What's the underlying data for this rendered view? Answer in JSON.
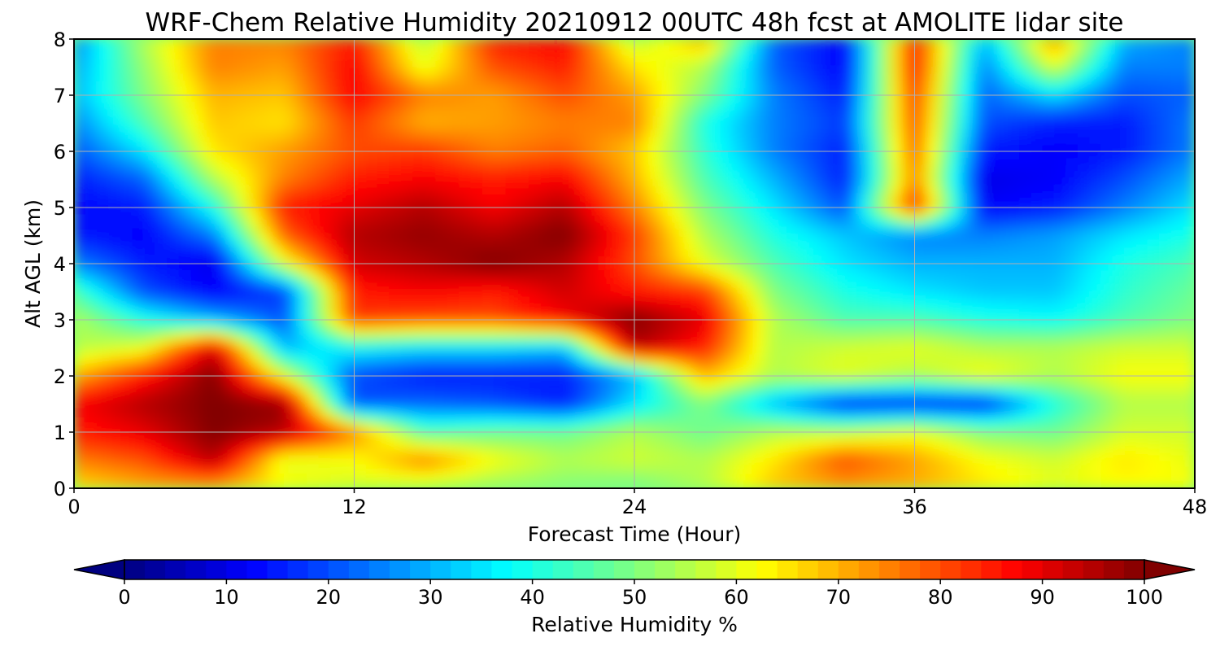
{
  "chart_data": {
    "type": "heatmap",
    "title": "WRF-Chem Relative Humidity 20210912 00UTC 48h fcst at AMOLITE lidar site",
    "xlabel": "Forecast Time (Hour)",
    "ylabel": "Alt AGL (km)",
    "xlim": [
      0,
      48
    ],
    "ylim": [
      0,
      8
    ],
    "x_ticks": [
      "0",
      "12",
      "24",
      "36",
      "48"
    ],
    "y_ticks": [
      "0",
      "1",
      "2",
      "3",
      "4",
      "5",
      "6",
      "7",
      "8"
    ],
    "grid": true,
    "colorbar": {
      "label": "Relative Humidity %",
      "colormap": "jet",
      "range": [
        0,
        100
      ],
      "extend": "both",
      "ticks": [
        "0",
        "10",
        "20",
        "30",
        "40",
        "50",
        "60",
        "70",
        "80",
        "90",
        "100"
      ]
    },
    "x": [
      0,
      3,
      6,
      9,
      12,
      15,
      18,
      21,
      24,
      27,
      30,
      33,
      36,
      39,
      42,
      45,
      48
    ],
    "y": [
      0,
      0.5,
      1,
      1.5,
      2,
      2.5,
      3,
      3.5,
      4,
      4.5,
      5,
      5.5,
      6,
      6.5,
      7,
      7.5,
      8
    ],
    "z": [
      [
        65,
        70,
        70,
        62,
        58,
        55,
        52,
        50,
        48,
        55,
        68,
        72,
        70,
        65,
        60,
        62,
        62
      ],
      [
        75,
        80,
        95,
        60,
        62,
        75,
        62,
        55,
        58,
        55,
        65,
        80,
        72,
        62,
        58,
        65,
        60
      ],
      [
        85,
        90,
        100,
        95,
        75,
        45,
        48,
        48,
        55,
        48,
        55,
        55,
        60,
        50,
        48,
        58,
        58
      ],
      [
        88,
        95,
        100,
        98,
        20,
        22,
        20,
        15,
        35,
        50,
        30,
        15,
        15,
        15,
        40,
        55,
        55
      ],
      [
        70,
        85,
        100,
        60,
        20,
        15,
        15,
        15,
        30,
        70,
        55,
        60,
        55,
        62,
        55,
        62,
        62
      ],
      [
        55,
        60,
        92,
        30,
        38,
        35,
        35,
        32,
        95,
        85,
        55,
        58,
        60,
        55,
        55,
        58,
        58
      ],
      [
        55,
        40,
        30,
        20,
        82,
        80,
        80,
        88,
        100,
        90,
        55,
        45,
        45,
        40,
        38,
        45,
        50
      ],
      [
        45,
        20,
        12,
        18,
        85,
        88,
        85,
        92,
        85,
        82,
        50,
        40,
        35,
        32,
        32,
        42,
        48
      ],
      [
        25,
        15,
        10,
        60,
        92,
        95,
        100,
        95,
        80,
        60,
        45,
        35,
        30,
        30,
        30,
        40,
        45
      ],
      [
        15,
        12,
        25,
        78,
        95,
        98,
        95,
        100,
        82,
        55,
        40,
        32,
        25,
        25,
        28,
        35,
        40
      ],
      [
        12,
        15,
        40,
        85,
        90,
        95,
        88,
        95,
        75,
        50,
        35,
        20,
        85,
        12,
        15,
        25,
        35
      ],
      [
        15,
        22,
        55,
        75,
        85,
        88,
        85,
        88,
        70,
        45,
        30,
        15,
        75,
        10,
        12,
        20,
        30
      ],
      [
        20,
        35,
        65,
        72,
        80,
        82,
        75,
        78,
        68,
        42,
        25,
        15,
        78,
        15,
        12,
        15,
        25
      ],
      [
        25,
        45,
        68,
        65,
        82,
        70,
        72,
        75,
        75,
        40,
        25,
        18,
        80,
        20,
        15,
        15,
        25
      ],
      [
        30,
        50,
        70,
        68,
        88,
        75,
        72,
        80,
        72,
        50,
        25,
        15,
        82,
        22,
        35,
        20,
        22
      ],
      [
        28,
        52,
        75,
        72,
        88,
        60,
        80,
        85,
        65,
        55,
        22,
        12,
        85,
        25,
        60,
        25,
        25
      ],
      [
        25,
        55,
        75,
        75,
        85,
        55,
        85,
        88,
        55,
        72,
        22,
        12,
        85,
        30,
        75,
        30,
        25
      ]
    ]
  }
}
